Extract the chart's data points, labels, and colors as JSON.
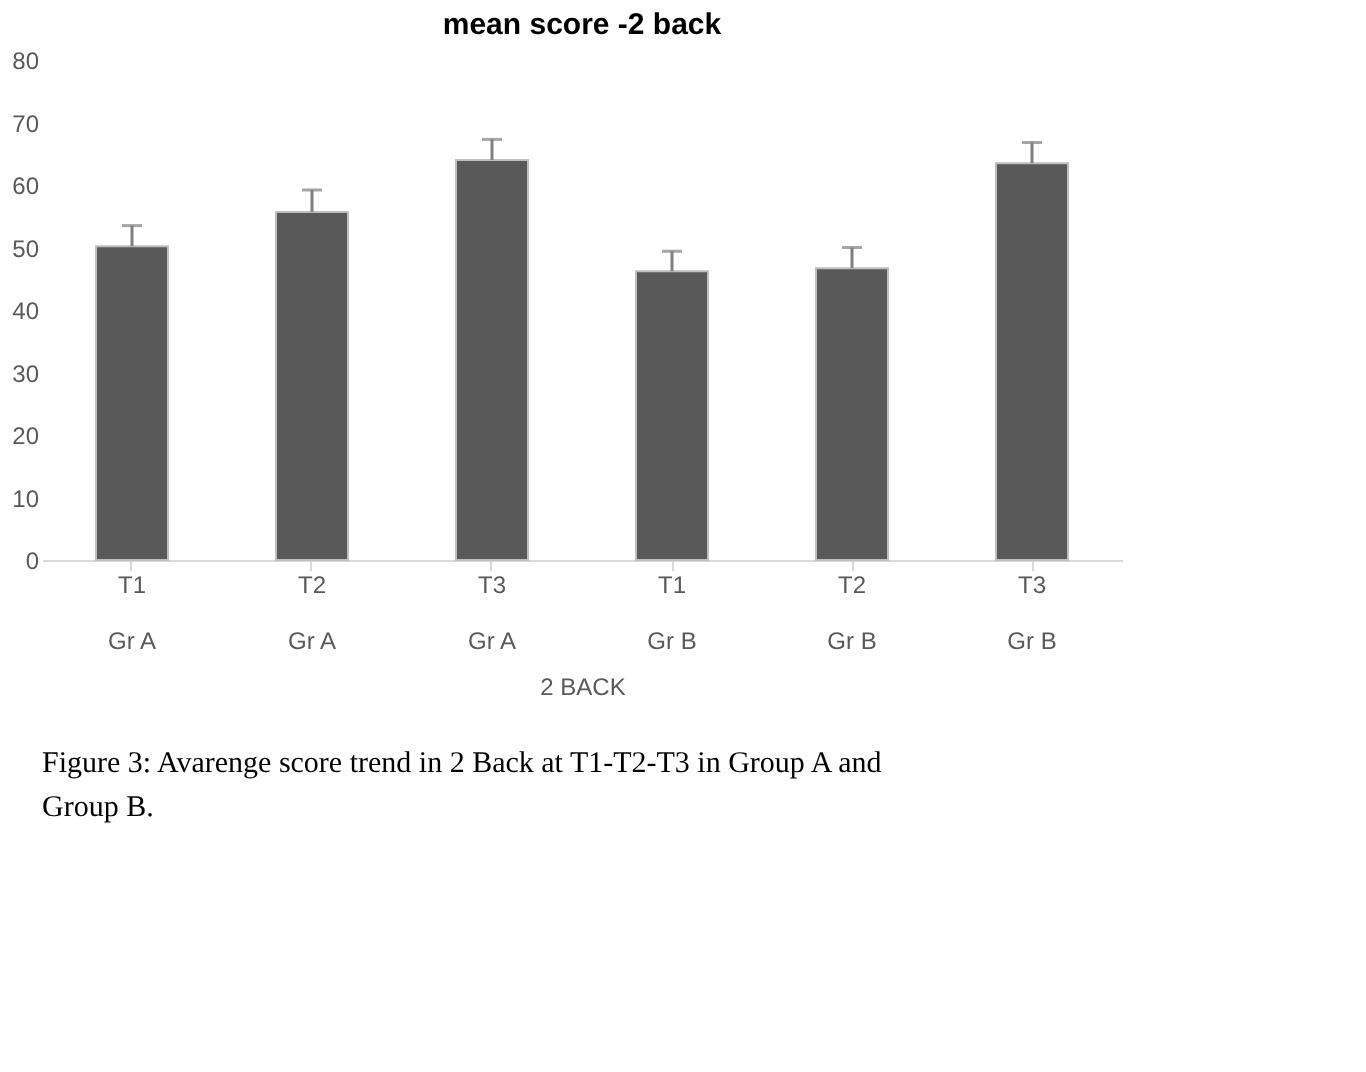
{
  "chart_data": {
    "type": "bar",
    "title": "mean score -2 back",
    "xlabel": "2 BACK",
    "categories": [
      "T1\nGr A",
      "T2\nGr A",
      "T3\nGr A",
      "T1\nGr B",
      "T2\nGr B",
      "T3\nGr B"
    ],
    "values": [
      50.2,
      55.7,
      64.0,
      46.2,
      46.7,
      63.5
    ],
    "errors": [
      [
        50.2,
        53.5
      ],
      [
        55.7,
        59.2
      ],
      [
        64.0,
        67.3
      ],
      [
        46.2,
        49.4
      ],
      [
        46.7,
        50.0
      ],
      [
        63.5,
        66.8
      ]
    ],
    "color": "#595959",
    "ylim": [
      0,
      80
    ],
    "yticks": [
      0,
      10,
      20,
      30,
      40,
      50,
      60,
      70,
      80
    ],
    "grid": false,
    "annotations": [
      "Figure 3: Avarenge score trend in 2 Back at T1-T2-T3 in Group A and Group B."
    ]
  }
}
